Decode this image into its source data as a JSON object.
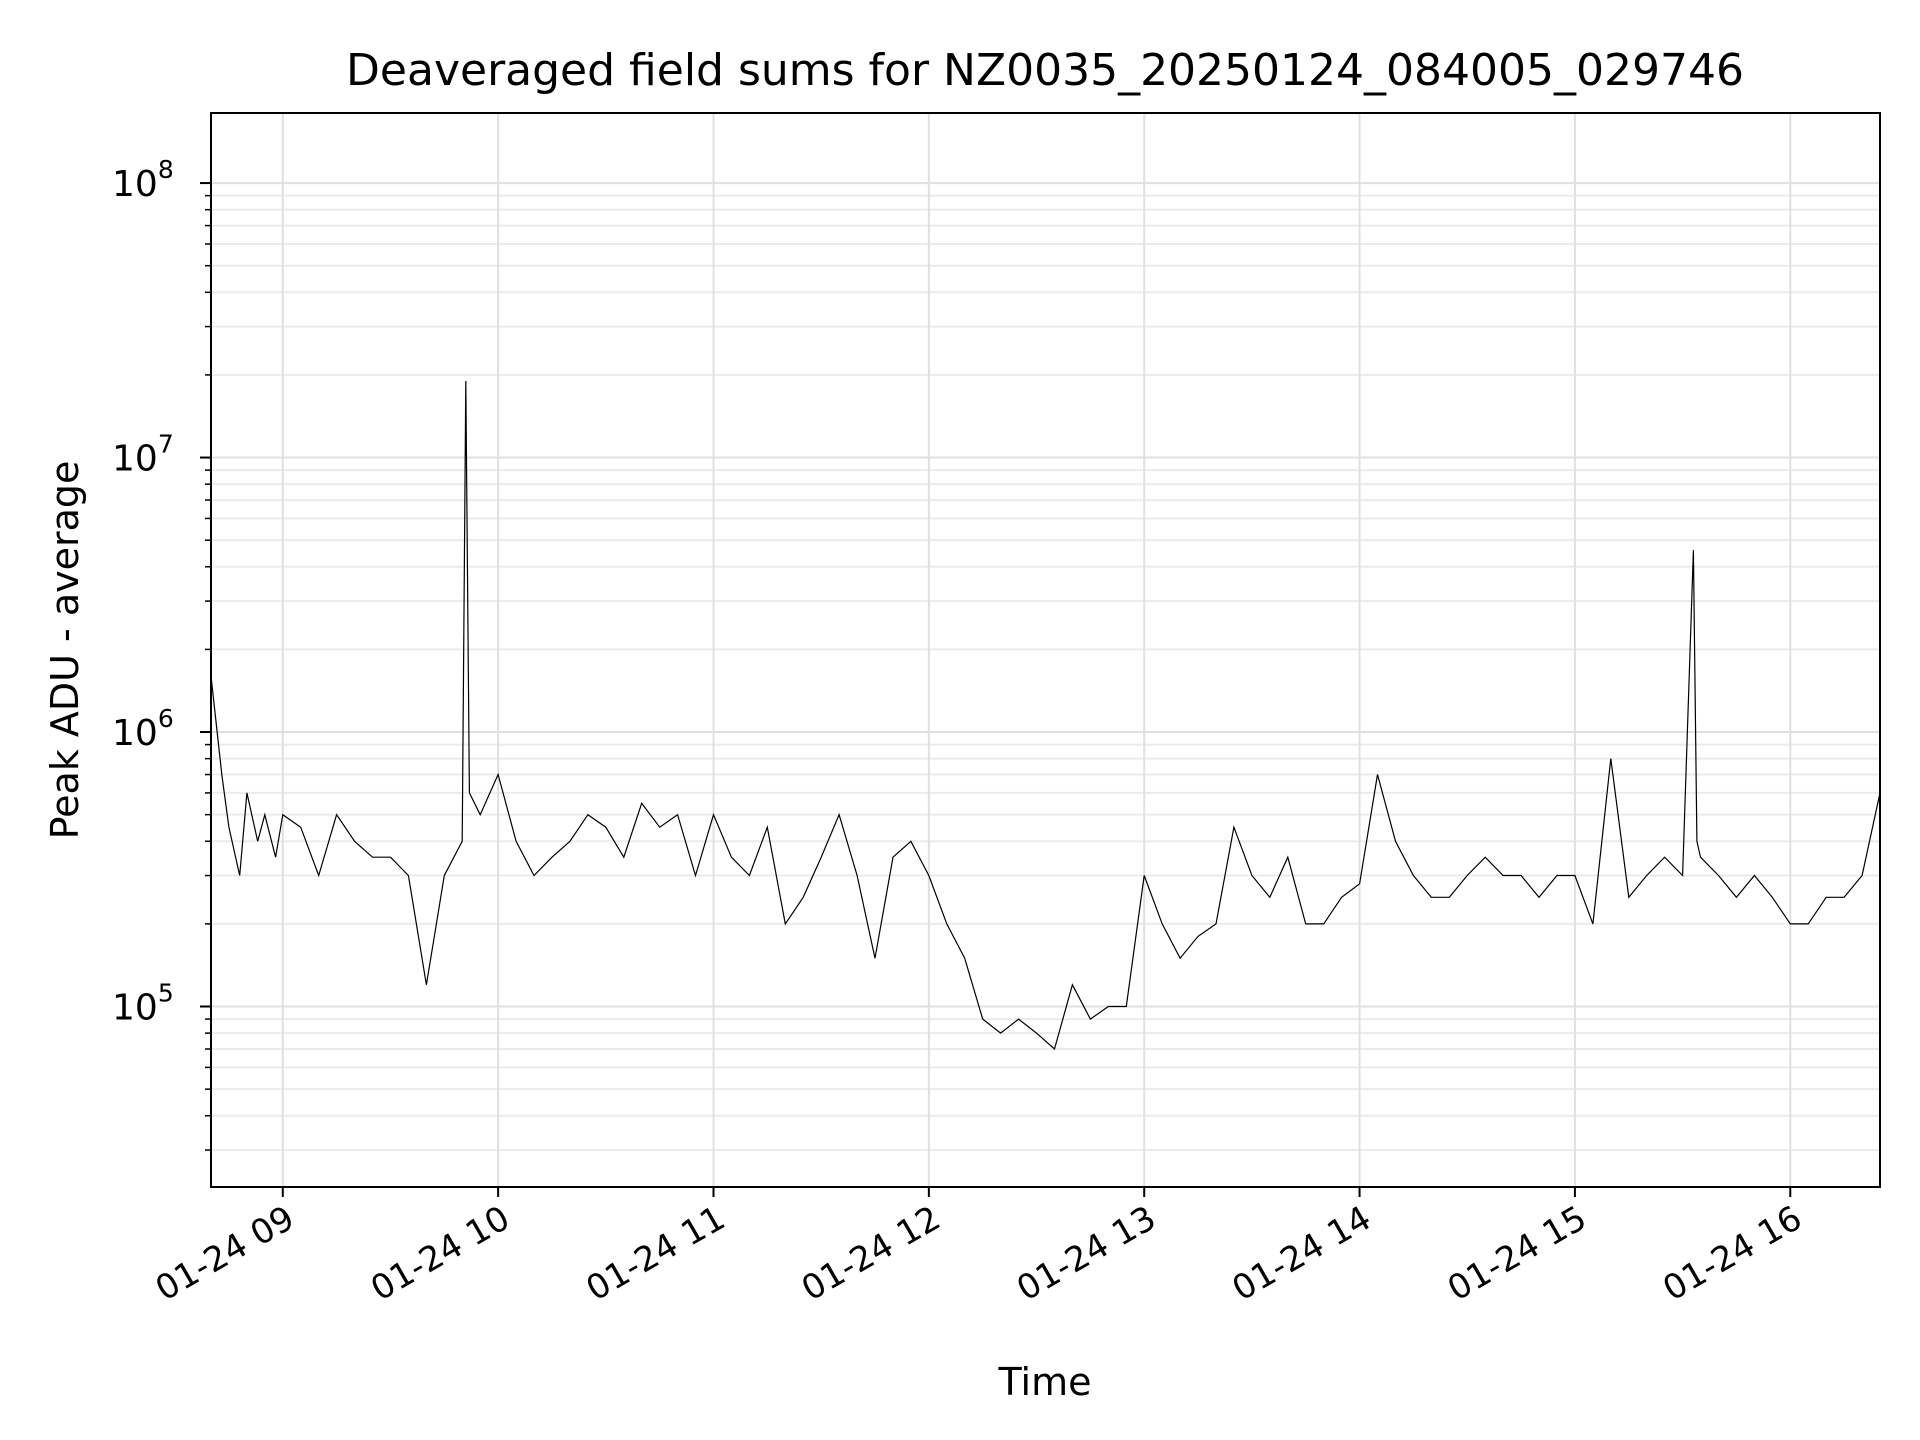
{
  "chart_data": {
    "type": "line",
    "title": "Deaveraged field sums for NZ0035_20250124_084005_029746",
    "xlabel": "Time",
    "ylabel": "Peak ADU - average",
    "yscale": "log",
    "ylim": [
      22000,
      180000000
    ],
    "xlim": [
      "2025-01-24 08:40",
      "2025-01-24 16:25"
    ],
    "grid": true,
    "line_color": "#000000",
    "x_ticks": [
      {
        "at": "2025-01-24 09:00",
        "label": "01-24 09"
      },
      {
        "at": "2025-01-24 10:00",
        "label": "01-24 10"
      },
      {
        "at": "2025-01-24 11:00",
        "label": "01-24 11"
      },
      {
        "at": "2025-01-24 12:00",
        "label": "01-24 12"
      },
      {
        "at": "2025-01-24 13:00",
        "label": "01-24 13"
      },
      {
        "at": "2025-01-24 14:00",
        "label": "01-24 14"
      },
      {
        "at": "2025-01-24 15:00",
        "label": "01-24 15"
      },
      {
        "at": "2025-01-24 16:00",
        "label": "01-24 16"
      }
    ],
    "y_ticks": [
      {
        "value": 100000,
        "base": "10",
        "exp": "5"
      },
      {
        "value": 1000000,
        "base": "10",
        "exp": "6"
      },
      {
        "value": 10000000,
        "base": "10",
        "exp": "7"
      },
      {
        "value": 100000000,
        "base": "10",
        "exp": "8"
      }
    ],
    "series": [
      {
        "x": [
          "2025-01-24 08:40",
          "2025-01-24 08:43",
          "2025-01-24 08:45",
          "2025-01-24 08:48",
          "2025-01-24 08:50",
          "2025-01-24 08:53",
          "2025-01-24 08:55",
          "2025-01-24 08:58",
          "2025-01-24 09:00",
          "2025-01-24 09:05",
          "2025-01-24 09:10",
          "2025-01-24 09:15",
          "2025-01-24 09:20",
          "2025-01-24 09:25",
          "2025-01-24 09:30",
          "2025-01-24 09:35",
          "2025-01-24 09:40",
          "2025-01-24 09:45",
          "2025-01-24 09:50",
          "2025-01-24 09:51",
          "2025-01-24 09:52",
          "2025-01-24 09:55",
          "2025-01-24 10:00",
          "2025-01-24 10:05",
          "2025-01-24 10:10",
          "2025-01-24 10:15",
          "2025-01-24 10:20",
          "2025-01-24 10:25",
          "2025-01-24 10:30",
          "2025-01-24 10:35",
          "2025-01-24 10:40",
          "2025-01-24 10:45",
          "2025-01-24 10:50",
          "2025-01-24 10:55",
          "2025-01-24 11:00",
          "2025-01-24 11:05",
          "2025-01-24 11:10",
          "2025-01-24 11:15",
          "2025-01-24 11:20",
          "2025-01-24 11:25",
          "2025-01-24 11:30",
          "2025-01-24 11:35",
          "2025-01-24 11:40",
          "2025-01-24 11:45",
          "2025-01-24 11:50",
          "2025-01-24 11:55",
          "2025-01-24 12:00",
          "2025-01-24 12:05",
          "2025-01-24 12:10",
          "2025-01-24 12:15",
          "2025-01-24 12:20",
          "2025-01-24 12:25",
          "2025-01-24 12:30",
          "2025-01-24 12:35",
          "2025-01-24 12:40",
          "2025-01-24 12:45",
          "2025-01-24 12:50",
          "2025-01-24 12:55",
          "2025-01-24 13:00",
          "2025-01-24 13:05",
          "2025-01-24 13:10",
          "2025-01-24 13:15",
          "2025-01-24 13:20",
          "2025-01-24 13:25",
          "2025-01-24 13:30",
          "2025-01-24 13:35",
          "2025-01-24 13:40",
          "2025-01-24 13:45",
          "2025-01-24 13:50",
          "2025-01-24 13:55",
          "2025-01-24 14:00",
          "2025-01-24 14:05",
          "2025-01-24 14:10",
          "2025-01-24 14:15",
          "2025-01-24 14:20",
          "2025-01-24 14:25",
          "2025-01-24 14:30",
          "2025-01-24 14:35",
          "2025-01-24 14:40",
          "2025-01-24 14:45",
          "2025-01-24 14:50",
          "2025-01-24 14:55",
          "2025-01-24 15:00",
          "2025-01-24 15:05",
          "2025-01-24 15:10",
          "2025-01-24 15:15",
          "2025-01-24 15:20",
          "2025-01-24 15:25",
          "2025-01-24 15:30",
          "2025-01-24 15:33",
          "2025-01-24 15:34",
          "2025-01-24 15:35",
          "2025-01-24 15:40",
          "2025-01-24 15:45",
          "2025-01-24 15:50",
          "2025-01-24 15:55",
          "2025-01-24 16:00",
          "2025-01-24 16:05",
          "2025-01-24 16:10",
          "2025-01-24 16:15",
          "2025-01-24 16:20",
          "2025-01-24 16:25"
        ],
        "y": [
          1600000,
          700000,
          450000,
          300000,
          600000,
          400000,
          500000,
          350000,
          500000,
          450000,
          300000,
          500000,
          400000,
          350000,
          350000,
          300000,
          120000,
          300000,
          400000,
          19000000,
          600000,
          500000,
          700000,
          400000,
          300000,
          350000,
          400000,
          500000,
          450000,
          350000,
          550000,
          450000,
          500000,
          300000,
          500000,
          350000,
          300000,
          450000,
          200000,
          250000,
          350000,
          500000,
          300000,
          150000,
          350000,
          400000,
          300000,
          200000,
          150000,
          90000,
          80000,
          90000,
          80000,
          70000,
          120000,
          90000,
          100000,
          100000,
          300000,
          200000,
          150000,
          180000,
          200000,
          450000,
          300000,
          250000,
          350000,
          200000,
          200000,
          250000,
          280000,
          700000,
          400000,
          300000,
          250000,
          250000,
          300000,
          350000,
          300000,
          300000,
          250000,
          300000,
          300000,
          200000,
          800000,
          250000,
          300000,
          350000,
          300000,
          4600000,
          400000,
          350000,
          300000,
          250000,
          300000,
          250000,
          200000,
          200000,
          250000,
          250000,
          300000,
          600000
        ]
      }
    ]
  }
}
